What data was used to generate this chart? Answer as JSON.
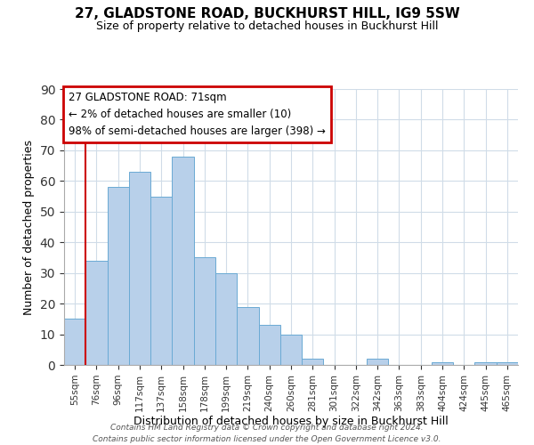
{
  "title1": "27, GLADSTONE ROAD, BUCKHURST HILL, IG9 5SW",
  "title2": "Size of property relative to detached houses in Buckhurst Hill",
  "xlabel": "Distribution of detached houses by size in Buckhurst Hill",
  "ylabel": "Number of detached properties",
  "bar_labels": [
    "55sqm",
    "76sqm",
    "96sqm",
    "117sqm",
    "137sqm",
    "158sqm",
    "178sqm",
    "199sqm",
    "219sqm",
    "240sqm",
    "260sqm",
    "281sqm",
    "301sqm",
    "322sqm",
    "342sqm",
    "363sqm",
    "383sqm",
    "404sqm",
    "424sqm",
    "445sqm",
    "465sqm"
  ],
  "bar_values": [
    15,
    34,
    58,
    63,
    55,
    68,
    35,
    30,
    19,
    13,
    10,
    2,
    0,
    0,
    2,
    0,
    0,
    1,
    0,
    1,
    1
  ],
  "bar_color": "#b8d0ea",
  "bar_edge_color": "#6aaad4",
  "red_line_color": "#cc0000",
  "ylim": [
    0,
    90
  ],
  "yticks": [
    0,
    10,
    20,
    30,
    40,
    50,
    60,
    70,
    80,
    90
  ],
  "annotation_title": "27 GLADSTONE ROAD: 71sqm",
  "annotation_line1": "← 2% of detached houses are smaller (10)",
  "annotation_line2": "98% of semi-detached houses are larger (398) →",
  "annotation_box_color": "#cc0000",
  "footer1": "Contains HM Land Registry data © Crown copyright and database right 2024.",
  "footer2": "Contains public sector information licensed under the Open Government Licence v3.0.",
  "grid_color": "#d0dce8",
  "red_line_index": 0.5
}
